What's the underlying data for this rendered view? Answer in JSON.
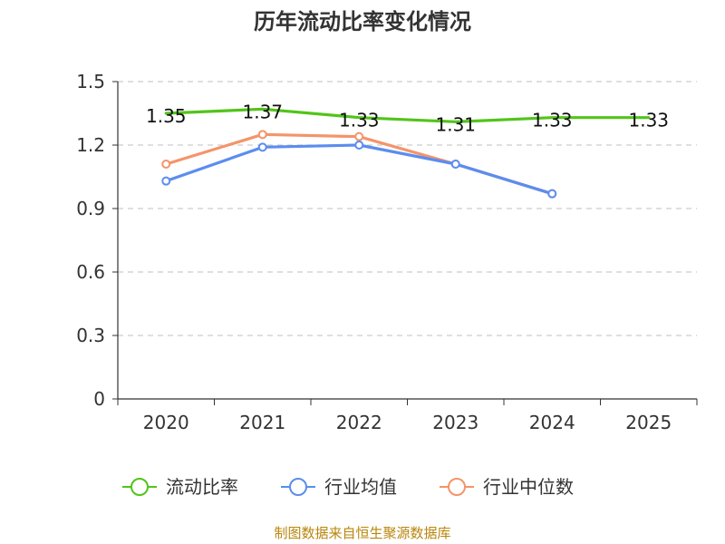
{
  "chart_data": {
    "type": "line",
    "title": "历年流动比率变化情况",
    "categories": [
      "2020",
      "2021",
      "2022",
      "2023",
      "2024",
      "2025"
    ],
    "y_ticks": [
      "0",
      "0.3",
      "0.6",
      "0.9",
      "1.2",
      "1.5"
    ],
    "ylim": [
      0,
      1.5
    ],
    "grid": true,
    "legend_position": "bottom",
    "series": [
      {
        "name": "流动比率",
        "color": "#52c41a",
        "values": [
          1.35,
          1.37,
          1.33,
          1.31,
          1.33,
          1.33
        ],
        "labels": [
          "1.35",
          "1.37",
          "1.33",
          "1.31",
          "1.33",
          "1.33"
        ],
        "marker": "none"
      },
      {
        "name": "行业均值",
        "color": "#5b8def",
        "values": [
          1.03,
          1.19,
          1.2,
          1.11,
          0.97,
          null
        ],
        "marker": "circle"
      },
      {
        "name": "行业中位数",
        "color": "#f4946a",
        "values": [
          1.11,
          1.25,
          1.24,
          1.11,
          0.97,
          null
        ],
        "marker": "circle"
      }
    ],
    "source": "制图数据来自恒生聚源数据库"
  }
}
